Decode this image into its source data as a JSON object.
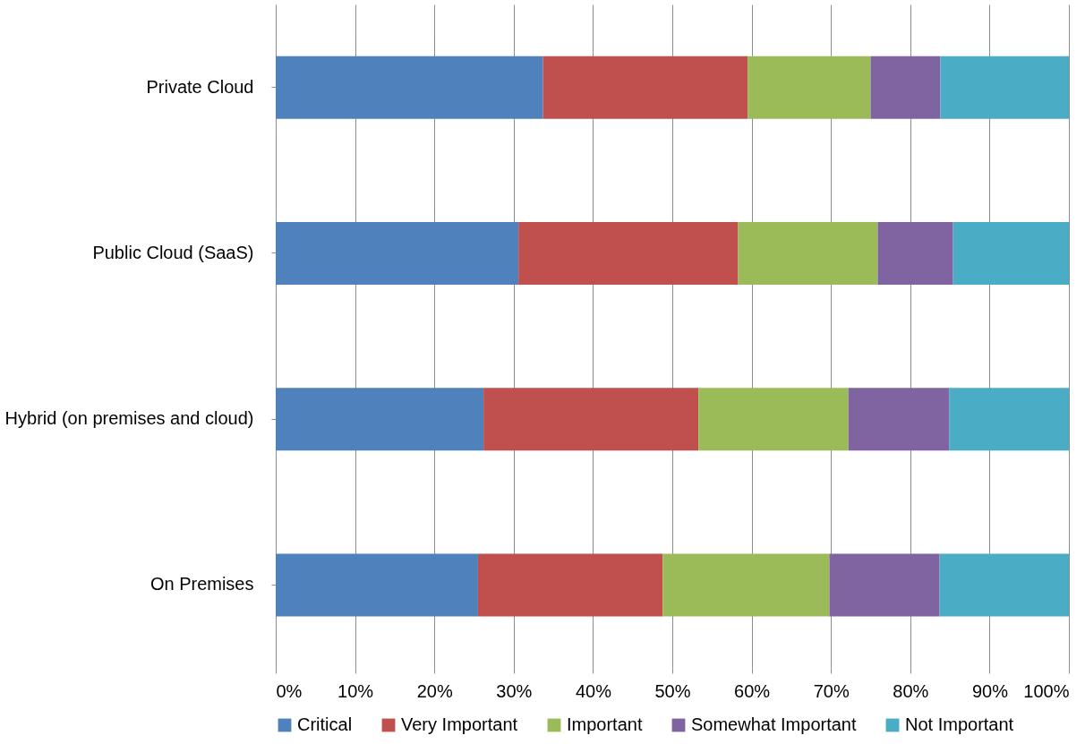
{
  "chart_data": {
    "type": "bar",
    "orientation": "horizontal",
    "stacked": true,
    "categories": [
      "Private Cloud",
      "Public Cloud (SaaS)",
      "Hybrid (on premises and cloud)",
      "On Premises"
    ],
    "series": [
      {
        "name": "Critical",
        "color": "#4f81bd",
        "values": [
          33.7,
          30.6,
          26.2,
          25.5
        ]
      },
      {
        "name": "Very Important",
        "color": "#c0504d",
        "values": [
          25.8,
          27.7,
          27.1,
          23.3
        ]
      },
      {
        "name": "Important",
        "color": "#9bbb59",
        "values": [
          15.5,
          17.6,
          18.9,
          21.0
        ]
      },
      {
        "name": "Somewhat Important",
        "color": "#8064a2",
        "values": [
          8.8,
          9.5,
          12.7,
          13.9
        ]
      },
      {
        "name": "Not Important",
        "color": "#4bacc6",
        "values": [
          16.2,
          14.6,
          15.1,
          16.3
        ]
      }
    ],
    "xlim": [
      0,
      100
    ],
    "xticks": [
      {
        "value": 0,
        "label": "0%"
      },
      {
        "value": 10,
        "label": "10%"
      },
      {
        "value": 20,
        "label": "20%"
      },
      {
        "value": 30,
        "label": "30%"
      },
      {
        "value": 40,
        "label": "40%"
      },
      {
        "value": 50,
        "label": "50%"
      },
      {
        "value": 60,
        "label": "60%"
      },
      {
        "value": 70,
        "label": "70%"
      },
      {
        "value": 80,
        "label": "80%"
      },
      {
        "value": 90,
        "label": "90%"
      },
      {
        "value": 100,
        "label": "100%"
      }
    ],
    "grid": "x",
    "legend": "bottom"
  }
}
